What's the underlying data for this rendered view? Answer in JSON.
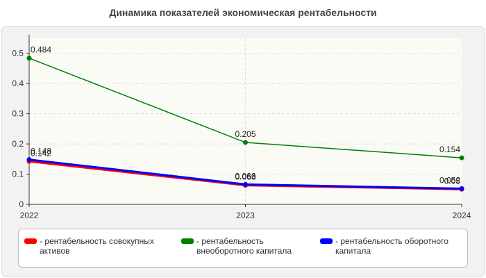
{
  "chart_data": {
    "type": "line",
    "title": "Динамика показателей экономическая рентабельности",
    "x": [
      "2022",
      "2023",
      "2024"
    ],
    "ylim": [
      0,
      0.55
    ],
    "yticks": [
      "0",
      "0.1",
      "0.2",
      "0.3",
      "0.4",
      "0.5"
    ],
    "grid": true,
    "legend_position": "bottom",
    "series": [
      {
        "name": "- рентабельность совокупных активов",
        "color": "#ff0000",
        "values": [
          0.142,
          0.063,
          0.05
        ],
        "labels": [
          "0.142",
          "0.063",
          "0.05"
        ]
      },
      {
        "name": "- рентабельность внеоборотного капитала",
        "color": "#008000",
        "values": [
          0.484,
          0.205,
          0.154
        ],
        "labels": [
          "0.484",
          "0.205",
          "0.154"
        ]
      },
      {
        "name": "- рентабельность оборотного капитала",
        "color": "#0000ff",
        "values": [
          0.148,
          0.066,
          0.052
        ],
        "labels": [
          "0.148",
          "0.066",
          "0.052"
        ]
      }
    ]
  },
  "legend": {
    "item_1": "- рентабельность совокупных\nактивов",
    "item_2": "- рентабельность\nвнеоборотного капитала",
    "item_3": "- рентабельность оборотного\nкапитала"
  }
}
